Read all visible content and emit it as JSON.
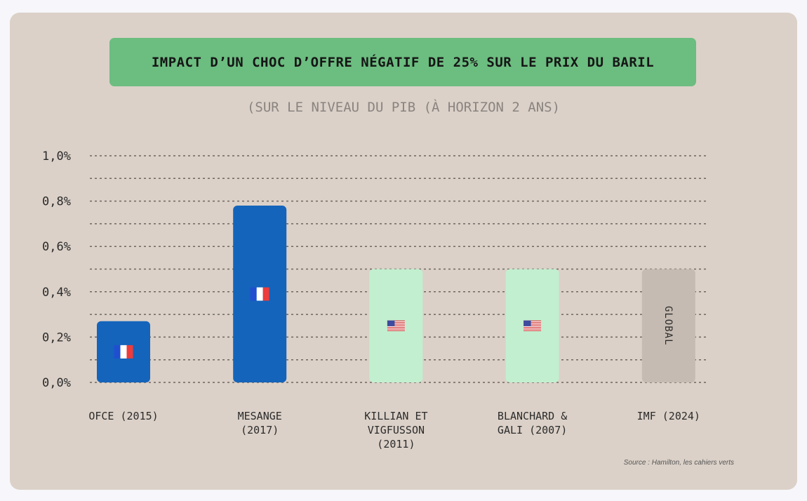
{
  "title": "IMPACT D’UN CHOC D’OFFRE NÉGATIF DE 25% SUR LE PRIX DU BARIL",
  "subtitle": "(SUR LE NIVEAU DU PIB (À HORIZON 2 ANS)",
  "source": "Source : Hamilton, les cahiers verts",
  "chart_data": {
    "type": "bar",
    "ylim": [
      0,
      1.0
    ],
    "yticks": [
      {
        "value": 0.0,
        "label": "0,0%"
      },
      {
        "value": 0.2,
        "label": "0,2%"
      },
      {
        "value": 0.4,
        "label": "0,4%"
      },
      {
        "value": 0.6,
        "label": "0,6%"
      },
      {
        "value": 0.8,
        "label": "0,8%"
      },
      {
        "value": 1.0,
        "label": "1,0%"
      }
    ],
    "grid": true,
    "categories": [
      {
        "label": [
          "OFCE (2015)"
        ],
        "value": 0.27,
        "color": "#1464bb",
        "icon": "france-flag-icon"
      },
      {
        "label": [
          "MESANGE",
          "(2017)"
        ],
        "value": 0.78,
        "color": "#1464bb",
        "icon": "france-flag-icon"
      },
      {
        "label": [
          "KILLIAN ET",
          "VIGFUSSON",
          "(2011)"
        ],
        "value": 0.5,
        "color": "#c2efcf",
        "icon": "usa-flag-icon"
      },
      {
        "label": [
          "BLANCHARD &",
          "GALI (2007)"
        ],
        "value": 0.5,
        "color": "#c2efcf",
        "icon": "usa-flag-icon"
      },
      {
        "label": [
          "IMF (2024)"
        ],
        "value": 0.5,
        "color": "#c5bbb2",
        "bar_label": "GLOBAL"
      }
    ]
  }
}
